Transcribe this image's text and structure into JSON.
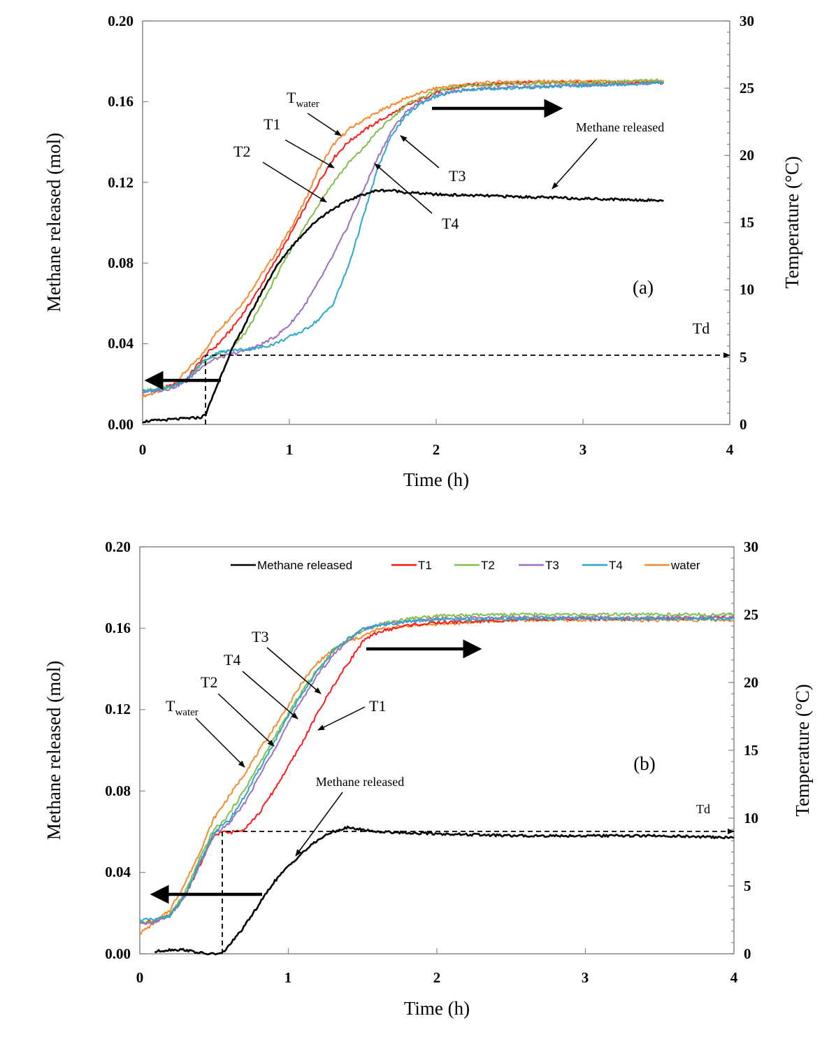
{
  "chart_data": [
    {
      "type": "line",
      "panel": "a",
      "panel_label": "a",
      "xlabel": "Time (h)",
      "ylabel": "Methane released (mol)",
      "y2label": "Temperature (°C)",
      "xlim": [
        0,
        4
      ],
      "ylim": [
        0,
        0.2
      ],
      "y2lim": [
        0,
        30
      ],
      "xticks": [
        "0",
        "1",
        "2",
        "3",
        "4"
      ],
      "yticks": [
        "0.00",
        "0.04",
        "0.08",
        "0.12",
        "0.16",
        "0.20"
      ],
      "y2ticks": [
        "0",
        "5",
        "10",
        "15",
        "20",
        "25",
        "30"
      ],
      "grid": false,
      "legend": null,
      "series": [
        {
          "key": "methane",
          "axis": "left",
          "color": "#000000",
          "x": [
            0,
            0.1,
            0.2,
            0.3,
            0.4,
            0.43,
            0.5,
            0.55,
            0.6,
            0.7,
            0.8,
            0.9,
            1.0,
            1.1,
            1.2,
            1.3,
            1.4,
            1.5,
            1.6,
            1.7,
            1.8,
            2.0,
            2.5,
            3.0,
            3.55
          ],
          "values": [
            0.0015,
            0.002,
            0.0025,
            0.003,
            0.0035,
            0.005,
            0.018,
            0.027,
            0.036,
            0.05,
            0.064,
            0.077,
            0.087,
            0.095,
            0.102,
            0.107,
            0.111,
            0.114,
            0.116,
            0.116,
            0.115,
            0.114,
            0.113,
            0.112,
            0.111
          ]
        },
        {
          "key": "water",
          "axis": "right",
          "color": "#f58a2e",
          "x": [
            0,
            0.1,
            0.2,
            0.3,
            0.4,
            0.5,
            0.6,
            0.7,
            0.8,
            0.9,
            1.0,
            1.1,
            1.2,
            1.3,
            1.4,
            1.5,
            1.6,
            1.8,
            2.0,
            2.2,
            2.5,
            3.0,
            3.55
          ],
          "values": [
            2.1,
            2.4,
            2.9,
            4.0,
            5.1,
            6.8,
            8.0,
            9.3,
            11.0,
            12.6,
            14.4,
            16.5,
            19.0,
            20.8,
            21.9,
            22.6,
            23.2,
            24.3,
            25.0,
            25.3,
            25.5,
            25.5,
            25.5
          ]
        },
        {
          "key": "T1",
          "axis": "right",
          "color": "#ff1a1a",
          "x": [
            0,
            0.1,
            0.2,
            0.3,
            0.4,
            0.45,
            0.5,
            0.6,
            0.7,
            0.8,
            0.9,
            1.0,
            1.1,
            1.2,
            1.3,
            1.4,
            1.5,
            1.6,
            1.8,
            2.0,
            2.2,
            2.5,
            3.0,
            3.55
          ],
          "values": [
            2.4,
            2.6,
            2.9,
            3.4,
            4.8,
            5.4,
            5.8,
            7.0,
            8.5,
            10.2,
            12.1,
            14.0,
            16.0,
            18.0,
            19.8,
            21.0,
            21.8,
            22.5,
            23.7,
            24.7,
            25.2,
            25.4,
            25.4,
            25.4
          ]
        },
        {
          "key": "T2",
          "axis": "right",
          "color": "#7fbf4a",
          "x": [
            0,
            0.1,
            0.2,
            0.3,
            0.4,
            0.5,
            0.6,
            0.7,
            0.8,
            0.9,
            1.0,
            1.1,
            1.2,
            1.3,
            1.4,
            1.5,
            1.6,
            1.8,
            2.0,
            2.2,
            2.5,
            3.0,
            3.55
          ],
          "values": [
            2.5,
            2.6,
            2.8,
            3.3,
            4.5,
            5.2,
            5.5,
            6.8,
            8.7,
            10.8,
            12.8,
            14.6,
            16.4,
            18.0,
            19.4,
            20.5,
            21.8,
            23.8,
            24.8,
            25.2,
            25.3,
            25.4,
            25.6
          ]
        },
        {
          "key": "T3",
          "axis": "right",
          "color": "#9b6fc2",
          "x": [
            0,
            0.1,
            0.2,
            0.3,
            0.4,
            0.5,
            0.6,
            0.7,
            0.8,
            0.9,
            1.0,
            1.1,
            1.2,
            1.3,
            1.4,
            1.5,
            1.6,
            1.7,
            1.8,
            1.9,
            2.0,
            2.2,
            2.5,
            3.0,
            3.55
          ],
          "values": [
            2.4,
            2.5,
            2.7,
            3.2,
            4.3,
            4.9,
            5.2,
            5.5,
            5.9,
            6.5,
            7.4,
            8.8,
            10.6,
            12.6,
            14.8,
            17.3,
            19.8,
            21.9,
            23.3,
            24.0,
            24.5,
            24.9,
            25.1,
            25.2,
            25.4
          ]
        },
        {
          "key": "T4",
          "axis": "right",
          "color": "#2aa8cc",
          "x": [
            0,
            0.1,
            0.2,
            0.3,
            0.4,
            0.5,
            0.6,
            0.7,
            0.8,
            0.9,
            1.0,
            1.1,
            1.2,
            1.3,
            1.4,
            1.5,
            1.6,
            1.7,
            1.8,
            1.9,
            2.0,
            2.2,
            2.5,
            3.0,
            3.55
          ],
          "values": [
            2.5,
            2.6,
            2.8,
            3.3,
            4.6,
            5.3,
            5.5,
            5.6,
            5.7,
            6.0,
            6.5,
            7.0,
            7.8,
            9.0,
            11.7,
            15.3,
            19.0,
            21.6,
            23.0,
            23.9,
            24.4,
            24.9,
            25.0,
            25.2,
            25.4
          ]
        }
      ],
      "annotations": {
        "twater_label": {
          "main": "T",
          "sub": "water"
        },
        "T1": "T1",
        "T2": "T2",
        "T3": "T3",
        "T4": "T4",
        "methane_label": "Methane released",
        "td_label": "Td"
      }
    },
    {
      "type": "line",
      "panel": "b",
      "panel_label": "b",
      "xlabel": "Time (h)",
      "ylabel": "Methane released (mol)",
      "y2label": "Temperature (°C)",
      "xlim": [
        0,
        4
      ],
      "ylim": [
        0,
        0.2
      ],
      "y2lim": [
        0,
        30
      ],
      "xticks": [
        "0",
        "1",
        "2",
        "3",
        "4"
      ],
      "yticks": [
        "0.00",
        "0.04",
        "0.08",
        "0.12",
        "0.16",
        "0.20"
      ],
      "y2ticks": [
        "0",
        "5",
        "10",
        "15",
        "20",
        "25",
        "30"
      ],
      "grid": false,
      "legend": "top",
      "legend_entries": [
        {
          "name": "Methane released",
          "color": "#000000"
        },
        {
          "name": "T1",
          "color": "#ff1a1a"
        },
        {
          "name": "T2",
          "color": "#7fbf4a"
        },
        {
          "name": "T3",
          "color": "#9b6fc2"
        },
        {
          "name": "T4",
          "color": "#2aa8cc"
        },
        {
          "name": "water",
          "color": "#f58a2e"
        }
      ],
      "series": [
        {
          "key": "methane",
          "axis": "left",
          "color": "#000000",
          "x": [
            0.1,
            0.2,
            0.3,
            0.4,
            0.45,
            0.5,
            0.55,
            0.6,
            0.7,
            0.8,
            0.9,
            1.0,
            1.1,
            1.2,
            1.3,
            1.4,
            1.5,
            1.6,
            2.0,
            2.5,
            3.0,
            3.5,
            4.0
          ],
          "values": [
            0.001,
            0.002,
            0.002,
            0.0005,
            0.0,
            0.0,
            0.0,
            0.004,
            0.013,
            0.024,
            0.035,
            0.043,
            0.05,
            0.056,
            0.06,
            0.062,
            0.061,
            0.06,
            0.059,
            0.058,
            0.058,
            0.058,
            0.057
          ]
        },
        {
          "key": "water",
          "axis": "right",
          "color": "#f58a2e",
          "x": [
            0,
            0.1,
            0.2,
            0.3,
            0.4,
            0.5,
            0.6,
            0.7,
            0.8,
            0.9,
            1.0,
            1.1,
            1.2,
            1.3,
            1.4,
            1.5,
            1.6,
            1.8,
            2.0,
            2.5,
            3.0,
            3.5,
            4.0
          ],
          "values": [
            1.5,
            2.3,
            3.2,
            5.1,
            7.4,
            10.0,
            11.6,
            13.2,
            14.9,
            16.6,
            18.3,
            20.1,
            21.5,
            22.4,
            23.0,
            23.4,
            23.9,
            24.2,
            24.3,
            24.6,
            24.6,
            24.6,
            24.6
          ]
        },
        {
          "key": "T1",
          "axis": "right",
          "color": "#ff1a1a",
          "x": [
            0,
            0.1,
            0.2,
            0.3,
            0.4,
            0.5,
            0.55,
            0.6,
            0.7,
            0.8,
            0.9,
            1.0,
            1.1,
            1.2,
            1.3,
            1.4,
            1.5,
            1.6,
            1.8,
            2.0,
            2.5,
            3.0,
            3.5,
            4.0
          ],
          "values": [
            2.3,
            2.4,
            2.8,
            4.2,
            6.4,
            8.7,
            9.0,
            8.9,
            9.2,
            10.3,
            12.0,
            13.8,
            15.7,
            17.8,
            19.7,
            21.4,
            23.0,
            23.7,
            24.2,
            24.4,
            24.6,
            24.7,
            24.7,
            24.8
          ]
        },
        {
          "key": "T2",
          "axis": "right",
          "color": "#7fbf4a",
          "x": [
            0,
            0.1,
            0.2,
            0.3,
            0.4,
            0.5,
            0.55,
            0.6,
            0.7,
            0.8,
            0.9,
            1.0,
            1.1,
            1.2,
            1.3,
            1.4,
            1.5,
            1.6,
            1.8,
            2.0,
            2.5,
            3.0,
            3.5,
            4.0
          ],
          "values": [
            2.3,
            2.4,
            2.9,
            4.4,
            6.9,
            9.2,
            9.6,
            10.3,
            12.0,
            13.9,
            15.8,
            17.7,
            19.5,
            21.0,
            22.3,
            23.2,
            23.8,
            24.3,
            24.7,
            24.9,
            25.0,
            25.0,
            25.0,
            25.0
          ]
        },
        {
          "key": "T3",
          "axis": "right",
          "color": "#9b6fc2",
          "x": [
            0,
            0.1,
            0.2,
            0.3,
            0.4,
            0.5,
            0.55,
            0.6,
            0.7,
            0.8,
            0.9,
            1.0,
            1.1,
            1.2,
            1.3,
            1.4,
            1.5,
            1.6,
            1.8,
            2.0,
            2.5,
            3.0,
            3.5,
            4.0
          ],
          "values": [
            2.2,
            2.3,
            2.8,
            4.1,
            6.5,
            8.8,
            9.2,
            9.6,
            11.0,
            13.0,
            15.0,
            17.0,
            18.9,
            20.6,
            22.0,
            23.1,
            23.9,
            24.2,
            24.5,
            24.7,
            24.8,
            24.8,
            24.8,
            24.8
          ]
        },
        {
          "key": "T4",
          "axis": "right",
          "color": "#2aa8cc",
          "x": [
            0,
            0.1,
            0.2,
            0.3,
            0.4,
            0.5,
            0.55,
            0.6,
            0.7,
            0.8,
            0.9,
            1.0,
            1.1,
            1.2,
            1.3,
            1.4,
            1.5,
            1.6,
            1.8,
            2.0,
            2.5,
            3.0,
            3.5,
            4.0
          ],
          "values": [
            2.5,
            2.5,
            2.8,
            4.2,
            6.6,
            9.0,
            9.4,
            9.8,
            11.5,
            13.5,
            15.5,
            17.5,
            19.3,
            20.9,
            22.3,
            23.2,
            23.9,
            24.2,
            24.5,
            24.6,
            24.7,
            24.7,
            24.7,
            24.7
          ]
        }
      ],
      "annotations": {
        "twater_label": {
          "main": "T",
          "sub": "water"
        },
        "T1": "T1",
        "T2": "T2",
        "T3": "T3",
        "T4": "T4",
        "methane_label": "Methane released",
        "td_label": "Td"
      }
    }
  ]
}
